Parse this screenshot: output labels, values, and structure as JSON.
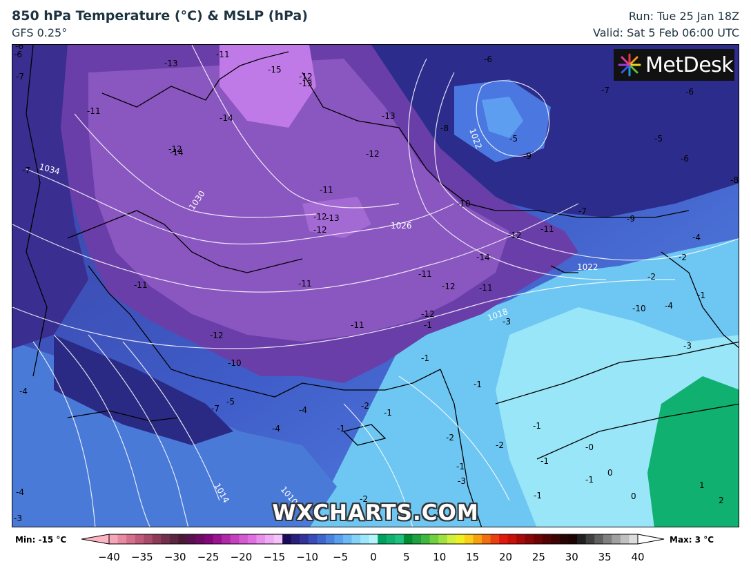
{
  "header": {
    "title": "850 hPa Temperature (°C) & MSLP (hPa)",
    "model": "GFS 0.25°",
    "run": "Run: Tue 25 Jan 18Z",
    "valid": "Valid: Sat 5 Feb 06:00 UTC"
  },
  "logo": {
    "text": "MetDesk"
  },
  "watermark": "WXCHARTS.COM",
  "colorbar": {
    "min_label": "Min: -15 °C",
    "max_label": "Max: 3 °C",
    "ticks": [
      "−40",
      "−35",
      "−30",
      "−25",
      "−20",
      "−15",
      "−10",
      "−5",
      "0",
      "5",
      "10",
      "15",
      "20",
      "25",
      "30",
      "35",
      "40"
    ],
    "colors": [
      "#f5a6b8",
      "#e88aa0",
      "#d6718c",
      "#c05c7a",
      "#a84a6a",
      "#8e3b5a",
      "#73304c",
      "#5c2540",
      "#4a1a36",
      "#5a1050",
      "#6e0a64",
      "#82087a",
      "#9a1492",
      "#b02aa8",
      "#c440bc",
      "#d45ad0",
      "#e070e0",
      "#e890ec",
      "#eeaaf2",
      "#f4c4f8",
      "#1a0a5a",
      "#28207a",
      "#33349a",
      "#3a4cb8",
      "#3e66cc",
      "#4a82e0",
      "#5aa0ee",
      "#6cbaf4",
      "#84d2f8",
      "#9ce6fa",
      "#b4f4fc",
      "#00a060",
      "#10b070",
      "#20c080",
      "#008c30",
      "#20a040",
      "#40b840",
      "#70d040",
      "#a0e040",
      "#d0f040",
      "#f0f020",
      "#f8d018",
      "#f8a010",
      "#f07010",
      "#e84010",
      "#e01810",
      "#c81008",
      "#a80808",
      "#880606",
      "#6c0404",
      "#520404",
      "#3c0404",
      "#2a0404",
      "#1c0404",
      "#202020",
      "#404040",
      "#606060",
      "#808080",
      "#a0a0a0",
      "#c0c0c0",
      "#dcdcdc"
    ]
  },
  "map": {
    "temperature_labels": [
      "-6",
      "-7",
      "-13",
      "-15",
      "-12",
      "-13",
      "-11",
      "-14",
      "-13",
      "-12",
      "-14",
      "-7",
      "-11",
      "-12",
      "-13",
      "-11",
      "-10",
      "-12",
      "-11",
      "-11",
      "-12",
      "-14",
      "-11",
      "-12",
      "-12",
      "-11",
      "-10",
      "-12",
      "-11",
      "-12",
      "-11",
      "-8",
      "-5",
      "-9",
      "-6",
      "-7",
      "-6",
      "-5",
      "-6",
      "-8",
      "-9",
      "-7",
      "-2",
      "-4",
      "-2",
      "-1",
      "-10",
      "-4",
      "-3",
      "-1",
      "-3",
      "-5",
      "-7",
      "-4",
      "-4",
      "-4",
      "-1",
      "-2",
      "-1",
      "-2",
      "-1",
      "-2",
      "-1",
      "-1",
      "-2",
      "-1",
      "-0",
      "0",
      "-1",
      "0",
      "1",
      "2",
      "-3",
      "-3",
      "-4",
      "-2",
      "-1",
      "-1",
      "-6"
    ],
    "isobar_labels": [
      "1034",
      "1030",
      "1026",
      "1022",
      "1022",
      "1018",
      "1014",
      "1010"
    ]
  }
}
